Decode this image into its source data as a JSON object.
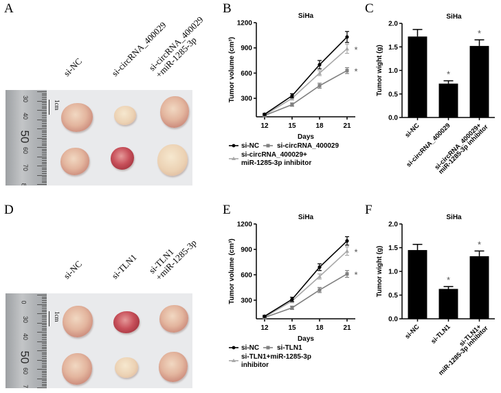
{
  "panels": {
    "A": {
      "letter": "A",
      "group_labels": [
        [
          "si-NC"
        ],
        [
          "si-circRNA_400029"
        ],
        [
          "si-circRNA_400029",
          "+miR-1285-3p"
        ]
      ],
      "scale_label": "1cm",
      "ruler_numbers": [
        "30",
        "40",
        "50",
        "60",
        "70",
        "8"
      ]
    },
    "D": {
      "letter": "D",
      "group_labels": [
        [
          "si-NC"
        ],
        [
          "si-TLN1"
        ],
        [
          "si-TLN1",
          "+miR-1285-3p"
        ]
      ],
      "scale_label": "1cm",
      "ruler_numbers": [
        "0",
        "30",
        "40",
        "50",
        "60",
        "70"
      ]
    },
    "B": {
      "letter": "B"
    },
    "C": {
      "letter": "C"
    },
    "E": {
      "letter": "E"
    },
    "F": {
      "letter": "F"
    }
  },
  "colors": {
    "series_black": "#000000",
    "series_dark_gray": "#808080",
    "series_light_gray": "#a8a8a8",
    "bar_fill": "#000000"
  },
  "chart_data": [
    {
      "id": "B",
      "type": "line",
      "title": "SiHa",
      "xlabel": "Days",
      "ylabel": "Tumor volume (cm³)",
      "x": [
        12,
        15,
        18,
        21
      ],
      "xticks": [
        "12",
        "15",
        "18",
        "21"
      ],
      "yticks": [
        300,
        600,
        900,
        1200
      ],
      "ylim": [
        80,
        1200
      ],
      "series": [
        {
          "name": "si-NC",
          "values": [
            110,
            330,
            700,
            1030
          ],
          "errors": [
            10,
            25,
            50,
            65
          ],
          "marker": "circle",
          "color": "#000000"
        },
        {
          "name": "si-circRNA_400029",
          "values": [
            95,
            225,
            450,
            630
          ],
          "errors": [
            8,
            20,
            30,
            35
          ],
          "marker": "square",
          "color": "#808080"
        },
        {
          "name": "si-circRNA_400029+ miR-1285-3p inhibitor",
          "values": [
            100,
            300,
            600,
            890
          ],
          "errors": [
            8,
            20,
            30,
            55
          ],
          "marker": "triangle",
          "color": "#a8a8a8"
        }
      ],
      "legend": [
        "si-NC",
        "si-circRNA_400029",
        "si-circRNA_400029+",
        "miR-1285-3p inhibitor"
      ],
      "annotations": [
        {
          "x": 21,
          "series": "si-circRNA_400029+ miR-1285-3p inhibitor",
          "text": "*"
        },
        {
          "x": 21,
          "series": "si-circRNA_400029",
          "text": "*"
        }
      ],
      "legend_position": "bottom"
    },
    {
      "id": "C",
      "type": "bar",
      "title": "SiHa",
      "xlabel": "",
      "ylabel": "Tumor wight (g)",
      "categories": [
        "si-NC",
        "si-circRNA_400029",
        "si-circRNA_400029+ miR-1285-3p inhibitor"
      ],
      "category_label_lines": [
        [
          "si-NC"
        ],
        [
          "si-circRNA_400029"
        ],
        [
          "si-circRNA_400029+",
          "miR-1285-3p inhibitor"
        ]
      ],
      "values": [
        1.72,
        0.72,
        1.52
      ],
      "errors": [
        0.15,
        0.06,
        0.13
      ],
      "significance": [
        "",
        "*",
        "*"
      ],
      "yticks": [
        "0.0",
        "0.5",
        "1.0",
        "1.5",
        "2.0"
      ],
      "ylim": [
        0,
        2.0
      ]
    },
    {
      "id": "E",
      "type": "line",
      "title": "SiHa",
      "xlabel": "Days",
      "ylabel": "Tumor volume (cm³)",
      "x": [
        12,
        15,
        18,
        21
      ],
      "xticks": [
        "12",
        "15",
        "18",
        "21"
      ],
      "yticks": [
        300,
        600,
        900,
        1200
      ],
      "ylim": [
        80,
        1200
      ],
      "series": [
        {
          "name": "si-NC",
          "values": [
            110,
            310,
            690,
            1000
          ],
          "errors": [
            10,
            25,
            40,
            50
          ],
          "marker": "circle",
          "color": "#000000"
        },
        {
          "name": "si-TLN1",
          "values": [
            95,
            210,
            420,
            610
          ],
          "errors": [
            8,
            20,
            30,
            40
          ],
          "marker": "square",
          "color": "#808080"
        },
        {
          "name": "si-TLN1+miR-1285-3p inhibitor",
          "values": [
            100,
            290,
            580,
            880
          ],
          "errors": [
            8,
            20,
            30,
            50
          ],
          "marker": "triangle",
          "color": "#a8a8a8"
        }
      ],
      "legend": [
        "si-NC",
        "si-TLN1",
        "si-TLN1+miR-1285-3p",
        "inhibitor"
      ],
      "annotations": [
        {
          "x": 21,
          "series": "si-TLN1+miR-1285-3p inhibitor",
          "text": "*"
        },
        {
          "x": 21,
          "series": "si-TLN1",
          "text": "*"
        }
      ],
      "legend_position": "bottom"
    },
    {
      "id": "F",
      "type": "bar",
      "title": "SiHa",
      "xlabel": "",
      "ylabel": "Tumor wight (g)",
      "categories": [
        "si-NC",
        "si-TLN1",
        "si-TLN1+ miR-1285-3p inhibitor"
      ],
      "category_label_lines": [
        [
          "si-NC"
        ],
        [
          "si-TLN1"
        ],
        [
          "si-TLN1+",
          "miR-1285-3p inhibitor"
        ]
      ],
      "values": [
        1.45,
        0.63,
        1.32
      ],
      "errors": [
        0.12,
        0.05,
        0.11
      ],
      "significance": [
        "",
        "*",
        "*"
      ],
      "yticks": [
        "0.0",
        "0.5",
        "1.0",
        "1.5",
        "2.0"
      ],
      "ylim": [
        0,
        2.0
      ]
    }
  ]
}
